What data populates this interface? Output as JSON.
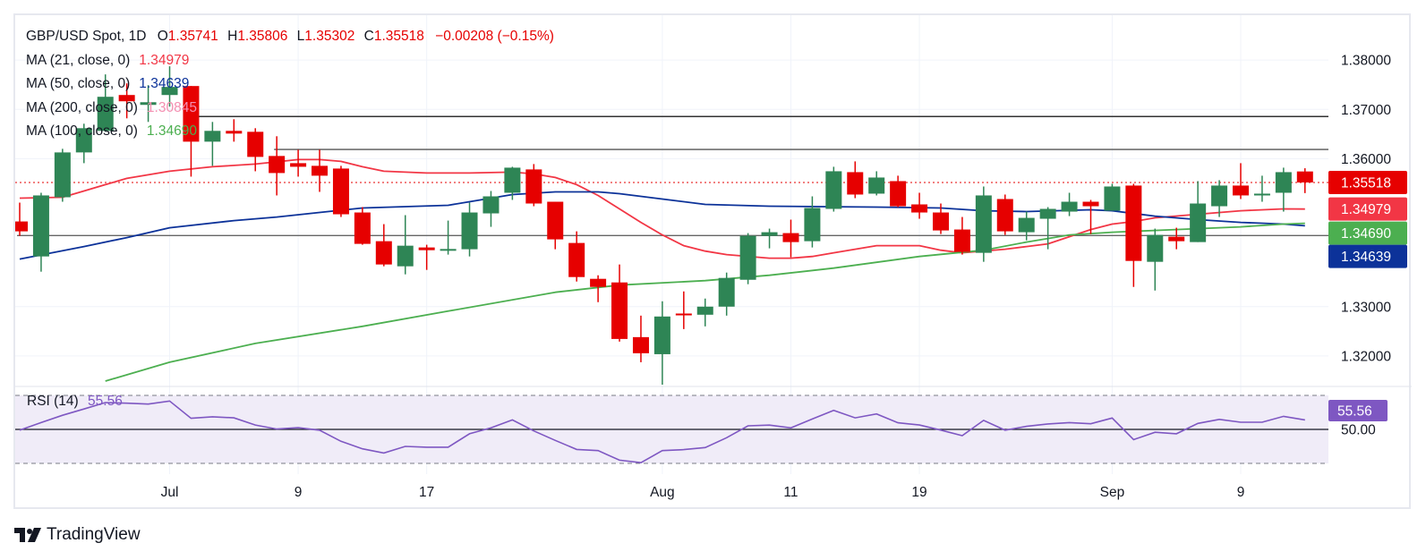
{
  "legend": {
    "symbol": "GBP/USD Spot, 1D",
    "o_label": "O",
    "o_value": "1.35741",
    "h_label": "H",
    "h_value": "1.35806",
    "l_label": "L",
    "l_value": "1.35302",
    "c_label": "C",
    "c_value": "1.35518",
    "change": "−0.00208 (−0.15%)",
    "ma": [
      {
        "label": "MA (21, close, 0)",
        "value": "1.34979",
        "color": "#f23645"
      },
      {
        "label": "MA (50, close, 0)",
        "value": "1.34639",
        "color": "#0c3299"
      },
      {
        "label": "MA (200, close, 0)",
        "value": "1.30845",
        "color": "#f48fb1"
      },
      {
        "label": "MA (100, close, 0)",
        "value": "1.34690",
        "color": "#4caf50"
      }
    ]
  },
  "rsi_legend": {
    "label": "RSI (14)",
    "value": "55.56",
    "color": "#7e57c2"
  },
  "branding": {
    "logo_text": "TradingView"
  },
  "colors": {
    "up": "#2e8555",
    "down": "#e60000",
    "rsi": "#7e57c2",
    "rsi_band": "#f0ecf8",
    "grid": "#f0f3fa"
  },
  "chart_data": {
    "type": "candlestick",
    "title": "GBP/USD Spot, 1D",
    "ylim": [
      1.314,
      1.38909
    ],
    "y_ticks": [
      "1.38000",
      "1.37000",
      "1.36000",
      "1.33000",
      "1.32000"
    ],
    "y_tick_values": [
      1.38,
      1.37,
      1.36,
      1.33,
      1.32
    ],
    "grid": true,
    "x_ticks": [
      {
        "index": 7,
        "label": "Jul"
      },
      {
        "index": 13,
        "label": "9"
      },
      {
        "index": 19,
        "label": "17"
      },
      {
        "index": 30,
        "label": "Aug"
      },
      {
        "index": 36,
        "label": "11"
      },
      {
        "index": 42,
        "label": "19"
      },
      {
        "index": 51,
        "label": "Sep"
      },
      {
        "index": 57,
        "label": "9"
      }
    ],
    "ohlc": [
      [
        1.34727,
        1.35109,
        1.34436,
        1.34527
      ],
      [
        1.34018,
        1.35309,
        1.33709,
        1.35255
      ],
      [
        1.35218,
        1.362,
        1.35127,
        1.36127
      ],
      [
        1.36127,
        1.36709,
        1.35909,
        1.36618
      ],
      [
        1.36564,
        1.37709,
        1.36545,
        1.37255
      ],
      [
        1.37291,
        1.37527,
        1.36818,
        1.37164
      ],
      [
        1.37091,
        1.37491,
        1.36745,
        1.37145
      ],
      [
        1.37291,
        1.37873,
        1.37055,
        1.37455
      ],
      [
        1.37473,
        1.37473,
        1.35636,
        1.36345
      ],
      [
        1.36345,
        1.36745,
        1.35855,
        1.36564
      ],
      [
        1.36564,
        1.368,
        1.36345,
        1.36509
      ],
      [
        1.36545,
        1.36618,
        1.35745,
        1.36036
      ],
      [
        1.36055,
        1.36455,
        1.35255,
        1.35709
      ],
      [
        1.35909,
        1.36182,
        1.35636,
        1.35836
      ],
      [
        1.35855,
        1.36182,
        1.35327,
        1.35655
      ],
      [
        1.358,
        1.35855,
        1.34818,
        1.34873
      ],
      [
        1.34909,
        1.35018,
        1.34255,
        1.34273
      ],
      [
        1.34327,
        1.34673,
        1.33818,
        1.33855
      ],
      [
        1.33818,
        1.34855,
        1.33655,
        1.34236
      ],
      [
        1.342,
        1.34255,
        1.33745,
        1.34145
      ],
      [
        1.34151,
        1.34745,
        1.34055,
        1.34169
      ],
      [
        1.34164,
        1.35109,
        1.34018,
        1.34909
      ],
      [
        1.34891,
        1.35345,
        1.34618,
        1.35236
      ],
      [
        1.35309,
        1.35836,
        1.35164,
        1.35818
      ],
      [
        1.35782,
        1.35891,
        1.35036,
        1.35091
      ],
      [
        1.35127,
        1.35127,
        1.34164,
        1.34364
      ],
      [
        1.34291,
        1.34527,
        1.33509,
        1.336
      ],
      [
        1.33564,
        1.33636,
        1.33091,
        1.334
      ],
      [
        1.33491,
        1.33855,
        1.32291,
        1.32345
      ],
      [
        1.32382,
        1.32818,
        1.31873,
        1.32055
      ],
      [
        1.32036,
        1.33109,
        1.31418,
        1.328
      ],
      [
        1.3286,
        1.33309,
        1.32545,
        1.32836
      ],
      [
        1.32836,
        1.33164,
        1.326,
        1.33
      ],
      [
        1.33,
        1.33691,
        1.32818,
        1.33582
      ],
      [
        1.33545,
        1.34491,
        1.33455,
        1.34436
      ],
      [
        1.34436,
        1.34582,
        1.34182,
        1.34509
      ],
      [
        1.34491,
        1.34764,
        1.34,
        1.34309
      ],
      [
        1.34327,
        1.35236,
        1.342,
        1.35
      ],
      [
        1.34982,
        1.35836,
        1.34927,
        1.35745
      ],
      [
        1.35727,
        1.35945,
        1.352,
        1.35273
      ],
      [
        1.35291,
        1.35745,
        1.35255,
        1.35618
      ],
      [
        1.35545,
        1.35655,
        1.35018,
        1.35036
      ],
      [
        1.35073,
        1.35309,
        1.34782,
        1.34909
      ],
      [
        1.34909,
        1.35091,
        1.34473,
        1.34545
      ],
      [
        1.34564,
        1.34818,
        1.34055,
        1.34109
      ],
      [
        1.34091,
        1.35436,
        1.33909,
        1.35255
      ],
      [
        1.35182,
        1.35273,
        1.34455,
        1.34527
      ],
      [
        1.34509,
        1.34927,
        1.34345,
        1.348
      ],
      [
        1.34782,
        1.35018,
        1.34164,
        1.34982
      ],
      [
        1.34927,
        1.35309,
        1.34836,
        1.35127
      ],
      [
        1.35127,
        1.35164,
        1.34473,
        1.35036
      ],
      [
        1.34945,
        1.35491,
        1.34945,
        1.35436
      ],
      [
        1.35455,
        1.35491,
        1.334,
        1.33927
      ],
      [
        1.33909,
        1.34582,
        1.33327,
        1.34455
      ],
      [
        1.34418,
        1.346,
        1.34164,
        1.34327
      ],
      [
        1.34309,
        1.35545,
        1.34309,
        1.35091
      ],
      [
        1.35036,
        1.35564,
        1.34818,
        1.35455
      ],
      [
        1.35455,
        1.35909,
        1.35182,
        1.35255
      ],
      [
        1.35255,
        1.35655,
        1.35127,
        1.35291
      ],
      [
        1.35309,
        1.35818,
        1.34927,
        1.35727
      ],
      [
        1.35741,
        1.35806,
        1.35302,
        1.35518
      ]
    ],
    "moving_averages": [
      {
        "name": "MA (21, close, 0)",
        "color": "#f23645",
        "last": "1.34979",
        "points": [
          [
            0,
            1.352
          ],
          [
            2,
            1.35218
          ],
          [
            3,
            1.35345
          ],
          [
            4,
            1.35473
          ],
          [
            5,
            1.356
          ],
          [
            7,
            1.35745
          ],
          [
            9,
            1.35836
          ],
          [
            11,
            1.35891
          ],
          [
            13,
            1.35982
          ],
          [
            14,
            1.35982
          ],
          [
            15,
            1.35945
          ],
          [
            16,
            1.35836
          ],
          [
            17,
            1.35745
          ],
          [
            19,
            1.35709
          ],
          [
            21,
            1.35709
          ],
          [
            23,
            1.35727
          ],
          [
            24,
            1.35691
          ],
          [
            25,
            1.35618
          ],
          [
            26,
            1.35473
          ],
          [
            27,
            1.35255
          ],
          [
            28,
            1.34982
          ],
          [
            29,
            1.34709
          ],
          [
            30,
            1.34455
          ],
          [
            31,
            1.34236
          ],
          [
            32,
            1.34127
          ],
          [
            33,
            1.34055
          ],
          [
            35,
            1.33982
          ],
          [
            36,
            1.33982
          ],
          [
            37,
            1.34018
          ],
          [
            38,
            1.34091
          ],
          [
            40,
            1.34236
          ],
          [
            42,
            1.34236
          ],
          [
            43,
            1.34145
          ],
          [
            44,
            1.34091
          ],
          [
            46,
            1.34164
          ],
          [
            47,
            1.34218
          ],
          [
            48,
            1.34273
          ],
          [
            49,
            1.34418
          ],
          [
            50,
            1.34564
          ],
          [
            51,
            1.34673
          ],
          [
            52,
            1.34727
          ],
          [
            53,
            1.348
          ],
          [
            55,
            1.34873
          ],
          [
            57,
            1.34945
          ],
          [
            59,
            1.34982
          ],
          [
            60,
            1.34979
          ]
        ]
      },
      {
        "name": "MA (50, close, 0)",
        "color": "#0c3299",
        "last": "1.34639",
        "points": [
          [
            0,
            1.33964
          ],
          [
            3,
            1.34218
          ],
          [
            5,
            1.344
          ],
          [
            7,
            1.346
          ],
          [
            10,
            1.34745
          ],
          [
            12,
            1.34818
          ],
          [
            14,
            1.34909
          ],
          [
            16,
            1.35
          ],
          [
            20,
            1.35055
          ],
          [
            21,
            1.35127
          ],
          [
            22,
            1.352
          ],
          [
            23,
            1.35273
          ],
          [
            25,
            1.35327
          ],
          [
            27,
            1.35327
          ],
          [
            28,
            1.35291
          ],
          [
            30,
            1.35182
          ],
          [
            32,
            1.35073
          ],
          [
            35,
            1.35036
          ],
          [
            40,
            1.35018
          ],
          [
            43,
            1.35
          ],
          [
            45,
            1.34945
          ],
          [
            47,
            1.34927
          ],
          [
            50,
            1.34964
          ],
          [
            51,
            1.34945
          ],
          [
            53,
            1.34836
          ],
          [
            55,
            1.34764
          ],
          [
            57,
            1.34709
          ],
          [
            59,
            1.34673
          ],
          [
            60,
            1.34639
          ]
        ]
      },
      {
        "name": "MA (100, close, 0)",
        "color": "#4caf50",
        "last": "1.34690",
        "points": [
          [
            4,
            1.31491
          ],
          [
            7,
            1.31873
          ],
          [
            11,
            1.32255
          ],
          [
            16,
            1.326
          ],
          [
            20,
            1.32909
          ],
          [
            25,
            1.33291
          ],
          [
            28,
            1.33436
          ],
          [
            32,
            1.33527
          ],
          [
            35,
            1.33636
          ],
          [
            38,
            1.33782
          ],
          [
            42,
            1.34018
          ],
          [
            45,
            1.34145
          ],
          [
            47,
            1.34309
          ],
          [
            49,
            1.34455
          ],
          [
            51,
            1.34509
          ],
          [
            54,
            1.34564
          ],
          [
            57,
            1.34618
          ],
          [
            59,
            1.34673
          ],
          [
            60,
            1.3469
          ]
        ]
      },
      {
        "name": "MA (200, close, 0)",
        "color": "#f48fb1",
        "last": "1.30845",
        "points": []
      }
    ],
    "horizontal_lines": [
      {
        "price": 1.36855,
        "from_index": 8,
        "color": "#333333"
      },
      {
        "price": 1.36187,
        "from_index": 12,
        "color": "#555555"
      },
      {
        "price": 1.34442,
        "from_index": 0,
        "color": "#666666"
      }
    ],
    "price_tags": [
      {
        "label": "1.35518",
        "color": "#e60000"
      },
      {
        "label": "1.34979",
        "color": "#f23645"
      },
      {
        "label": "1.34690",
        "color": "#4caf50"
      },
      {
        "label": "1.34639",
        "color": "#0c3299"
      }
    ],
    "rsi": {
      "name": "RSI (14)",
      "ylim": [
        23.68,
        75.26
      ],
      "levels": [
        70,
        50,
        30
      ],
      "axis_tick": "50.00",
      "tag": "55.56",
      "values": [
        49.5,
        54,
        58.3,
        62,
        65.8,
        65.4,
        64.9,
        66.7,
        56.5,
        57.4,
        56.8,
        52.6,
        50.2,
        51,
        49.5,
        43,
        38.6,
        36.1,
        40,
        39.5,
        39.5,
        47.4,
        50.9,
        55.6,
        49.1,
        43.5,
        38.2,
        37.5,
        31.9,
        30.4,
        37.5,
        38.1,
        39.3,
        45.1,
        52.1,
        52.5,
        50.9,
        56.1,
        61.2,
        56.8,
        59.1,
        53.9,
        52.6,
        49.6,
        46.3,
        55.3,
        49.5,
        51.8,
        53.2,
        54,
        53.3,
        56.7,
        44,
        48.3,
        47.4,
        53.5,
        55.9,
        54.2,
        54.2,
        57.7,
        55.56
      ]
    }
  }
}
